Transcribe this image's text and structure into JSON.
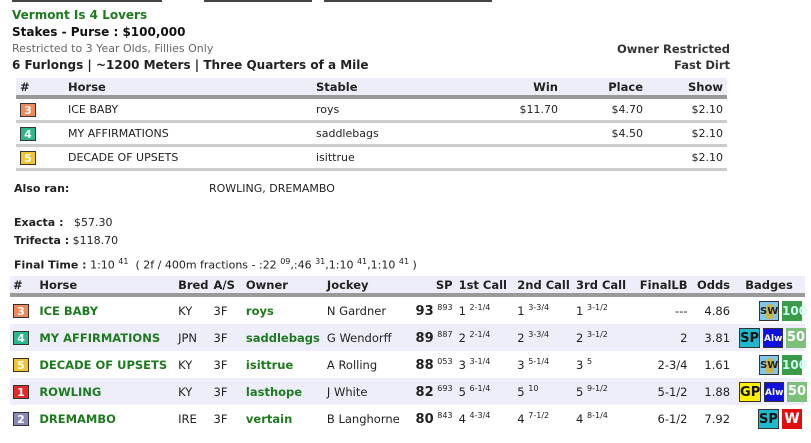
{
  "race": {
    "name": "Vermont Is 4 Lovers",
    "purse": "Stakes - Purse : $100,000",
    "restriction": "Restricted to 3 Year Olds, Fillies Only",
    "distance": "6 Furlongs | ~1200 Meters | Three Quarters of a Mile",
    "owner_restricted": "Owner Restricted",
    "surface": "Fast Dirt"
  },
  "colors": {
    "accent_green": "#1e7a1e",
    "header_bg": "#eeeefa"
  },
  "payouts": {
    "headers": [
      "#",
      "Horse",
      "Stable",
      "Win",
      "Place",
      "Show"
    ],
    "rows": [
      {
        "num": "3",
        "color": "#f08a5a",
        "horse": "ICE BABY",
        "stable": "roys",
        "win": "$11.70",
        "place": "$4.70",
        "show": "$2.10"
      },
      {
        "num": "4",
        "color": "#2cb88a",
        "horse": "MY AFFIRMATIONS",
        "stable": "saddlebags",
        "win": "",
        "place": "$4.50",
        "show": "$2.10"
      },
      {
        "num": "5",
        "color": "#f4c430",
        "horse": "DECADE OF UPSETS",
        "stable": "isittrue",
        "win": "",
        "place": "",
        "show": "$2.10"
      }
    ]
  },
  "also_ran": {
    "label": "Also ran:",
    "value": "ROWLING, DREMAMBO"
  },
  "exotics": {
    "exacta_label": "Exacta :",
    "exacta": "$57.30",
    "trifecta_label": "Trifecta :",
    "trifecta": "$118.70"
  },
  "final_time": {
    "label": "Final Time :",
    "time": "1:10",
    "time_sup": "41",
    "fractions_prefix": "( 2f / 400m fractions - :22",
    "f1_sup": "09",
    "f2": ",:46",
    "f2_sup": "31",
    "f3": ",1:10",
    "f3_sup": "41",
    "f4": ",1:10",
    "f4_sup": "41",
    "suffix": ")"
  },
  "results": {
    "headers": [
      "#",
      "Horse",
      "Bred",
      "A/S",
      "Owner",
      "Jockey",
      "SP",
      "1st Call",
      "2nd Call",
      "3rd Call",
      "FinalLB",
      "Odds",
      "Badges"
    ],
    "rows": [
      {
        "num": "3",
        "color": "#f08a5a",
        "horse": "ICE BABY",
        "bred": "KY",
        "as": "3F",
        "owner": "roys",
        "jockey": "N Gardner",
        "sp": "93",
        "sp_sup": "893",
        "c1": "1",
        "c1s": "2-1/4",
        "c2": "1",
        "c2s": "3-3/4",
        "c3": "1",
        "c3s": "3-1/2",
        "final_lb": "---",
        "odds": "4.86",
        "badges": [
          "sw-icon",
          "100-icon"
        ]
      },
      {
        "num": "4",
        "color": "#2cb88a",
        "horse": "MY AFFIRMATIONS",
        "bred": "JPN",
        "as": "3F",
        "owner": "saddlebags",
        "jockey": "G Wendorff",
        "sp": "89",
        "sp_sup": "887",
        "c1": "2",
        "c1s": "2-1/4",
        "c2": "2",
        "c2s": "3-3/4",
        "c3": "2",
        "c3s": "3-1/2",
        "final_lb": "2",
        "odds": "3.81",
        "badges": [
          "sp-icon",
          "alw-icon",
          "50-icon"
        ]
      },
      {
        "num": "5",
        "color": "#f4c430",
        "horse": "DECADE OF UPSETS",
        "bred": "KY",
        "as": "3F",
        "owner": "isittrue",
        "jockey": "A Rolling",
        "sp": "88",
        "sp_sup": "053",
        "c1": "3",
        "c1s": "3-1/4",
        "c2": "3",
        "c2s": "5-1/4",
        "c3": "3",
        "c3s": "5",
        "final_lb": "2-3/4",
        "odds": "1.61",
        "badges": [
          "sw-icon",
          "100-icon"
        ]
      },
      {
        "num": "1",
        "color": "#e82828",
        "horse": "ROWLING",
        "bred": "KY",
        "as": "3F",
        "owner": "lasthope",
        "jockey": "J White",
        "sp": "82",
        "sp_sup": "693",
        "c1": "5",
        "c1s": "6-1/4",
        "c2": "5",
        "c2s": "10",
        "c3": "5",
        "c3s": "9-1/2",
        "final_lb": "5-1/2",
        "odds": "1.88",
        "badges": [
          "gp-icon",
          "alw-icon",
          "50-icon"
        ]
      },
      {
        "num": "2",
        "color": "#8888bb",
        "horse": "DREMAMBO",
        "bred": "IRE",
        "as": "3F",
        "owner": "vertain",
        "jockey": "B Langhorne",
        "sp": "80",
        "sp_sup": "843",
        "c1": "4",
        "c1s": "4-3/4",
        "c2": "4",
        "c2s": "7-1/2",
        "c3": "4",
        "c3s": "8-1/4",
        "final_lb": "6-1/2",
        "odds": "7.92",
        "badges": [
          "sp-icon",
          "w-icon"
        ]
      }
    ],
    "badge_labels": {
      "sw-icon": "SW",
      "100-icon": "100",
      "50-icon": "50",
      "sp-icon": "SP",
      "alw-icon": "Alw",
      "gp-icon": "GP",
      "w-icon": "W"
    }
  }
}
